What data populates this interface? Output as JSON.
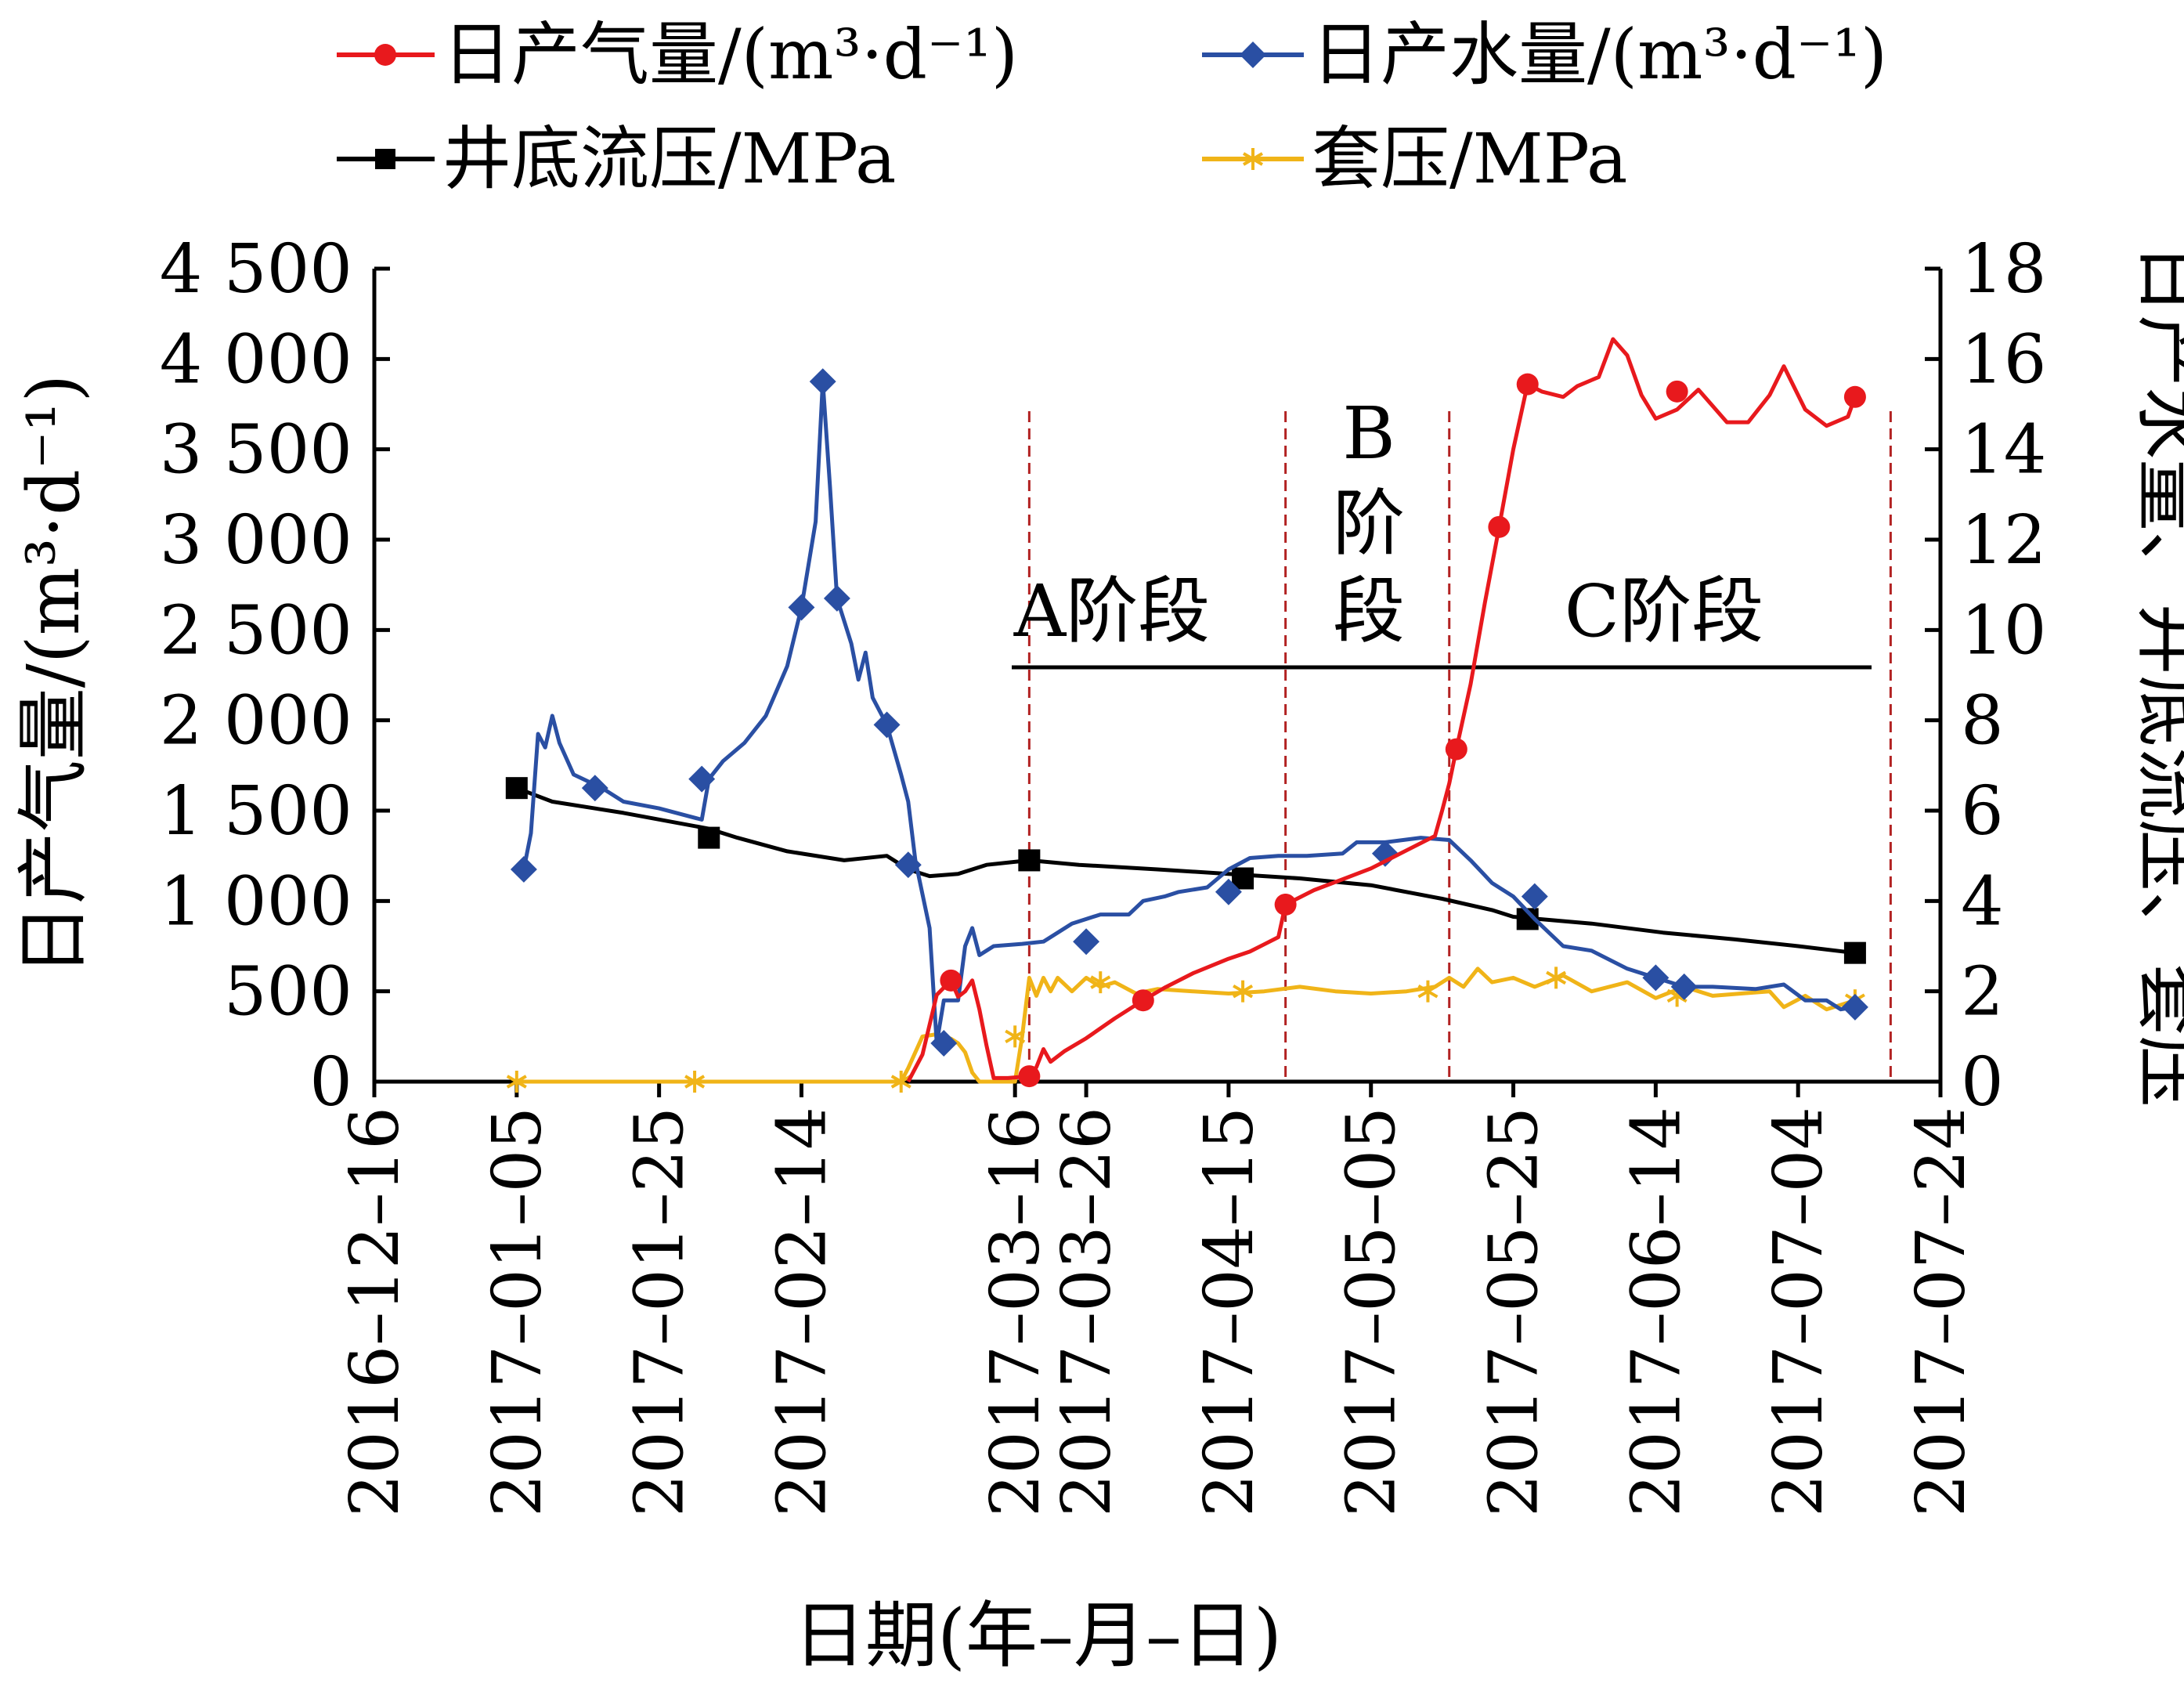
{
  "legend": {
    "gas": "日产气量/(m³·d⁻¹)",
    "water": "日产水量/(m³·d⁻¹)",
    "bhp": "井底流压/MPa",
    "casing": "套压/MPa"
  },
  "axes": {
    "xlabel": "日期(年–月–日)",
    "ylabel_left": "日产气量/(m³·d⁻¹)",
    "ylabel_right": "日产水量、井底流压、套压"
  },
  "stages": {
    "a": "A阶段",
    "b_letter": "B",
    "b_1": "阶",
    "b_2": "段",
    "c": "C阶段"
  },
  "chart_data": {
    "type": "line",
    "x_ticks": [
      "2016-12-16",
      "2017-01-05",
      "2017-01-25",
      "2017-02-14",
      "2017-03-16",
      "2017-03-26",
      "2017-04-15",
      "2017-05-05",
      "2017-05-25",
      "2017-06-14",
      "2017-07-04",
      "2017-07-24"
    ],
    "x_tick_labels": [
      "2016–12–16",
      "2017–01–05",
      "2017–01–25",
      "2017–02–14",
      "2017–03–16",
      "2017–03–26",
      "2017–04–15",
      "2017–05–05",
      "2017–05–25",
      "2017–06–14",
      "2017–07–04",
      "2017–07–24"
    ],
    "y_left": {
      "range": [
        0,
        4500
      ],
      "ticks": [
        0,
        500,
        1000,
        1500,
        2000,
        2500,
        3000,
        3500,
        4000,
        4500
      ],
      "tick_labels": [
        "0",
        "500",
        "1 000",
        "1 500",
        "2 000",
        "2 500",
        "3 000",
        "3 500",
        "4 000",
        "4 500"
      ]
    },
    "y_right": {
      "range": [
        0,
        18
      ],
      "ticks": [
        0,
        2,
        4,
        6,
        8,
        10,
        12,
        14,
        16,
        18
      ],
      "tick_labels": [
        "0",
        "2",
        "4",
        "6",
        "8",
        "10",
        "12",
        "14",
        "16",
        "18"
      ]
    },
    "stage_boundaries": [
      "2017-03-18",
      "2017-04-23",
      "2017-05-16",
      "2017-07-17"
    ],
    "colors": {
      "gas": "#e8191d",
      "water": "#2a4fa3",
      "bhp": "#000000",
      "casing": "#f0b418",
      "divider": "#b22222"
    },
    "series": [
      {
        "name": "日产气量/(m³·d⁻¹)",
        "key": "gas",
        "axis": "left",
        "marker": "circle",
        "points": [
          [
            "2017-03-01",
            0
          ],
          [
            "2017-03-03",
            150
          ],
          [
            "2017-03-05",
            480
          ],
          [
            "2017-03-07",
            560
          ],
          [
            "2017-03-08",
            470
          ],
          [
            "2017-03-09",
            500
          ],
          [
            "2017-03-10",
            560
          ],
          [
            "2017-03-11",
            400
          ],
          [
            "2017-03-12",
            200
          ],
          [
            "2017-03-13",
            20
          ],
          [
            "2017-03-15",
            20
          ],
          [
            "2017-03-18",
            30
          ],
          [
            "2017-03-19",
            80
          ],
          [
            "2017-03-20",
            180
          ],
          [
            "2017-03-21",
            110
          ],
          [
            "2017-03-23",
            170
          ],
          [
            "2017-03-26",
            240
          ],
          [
            "2017-03-30",
            350
          ],
          [
            "2017-04-03",
            450
          ],
          [
            "2017-04-06",
            520
          ],
          [
            "2017-04-10",
            600
          ],
          [
            "2017-04-15",
            680
          ],
          [
            "2017-04-18",
            720
          ],
          [
            "2017-04-20",
            760
          ],
          [
            "2017-04-22",
            800
          ],
          [
            "2017-04-23",
            980
          ],
          [
            "2017-04-27",
            1060
          ],
          [
            "2017-05-01",
            1120
          ],
          [
            "2017-05-05",
            1180
          ],
          [
            "2017-05-10",
            1280
          ],
          [
            "2017-05-14",
            1360
          ],
          [
            "2017-05-15",
            1500
          ],
          [
            "2017-05-16",
            1650
          ],
          [
            "2017-05-17",
            1840
          ],
          [
            "2017-05-19",
            2200
          ],
          [
            "2017-05-21",
            2650
          ],
          [
            "2017-05-23",
            3070
          ],
          [
            "2017-05-25",
            3500
          ],
          [
            "2017-05-27",
            3860
          ],
          [
            "2017-05-29",
            3820
          ],
          [
            "2017-06-01",
            3790
          ],
          [
            "2017-06-03",
            3850
          ],
          [
            "2017-06-06",
            3900
          ],
          [
            "2017-06-08",
            4110
          ],
          [
            "2017-06-10",
            4020
          ],
          [
            "2017-06-12",
            3800
          ],
          [
            "2017-06-14",
            3670
          ],
          [
            "2017-06-17",
            3720
          ],
          [
            "2017-06-20",
            3830
          ],
          [
            "2017-06-24",
            3650
          ],
          [
            "2017-06-27",
            3650
          ],
          [
            "2017-06-30",
            3800
          ],
          [
            "2017-07-02",
            3960
          ],
          [
            "2017-07-05",
            3720
          ],
          [
            "2017-07-08",
            3630
          ],
          [
            "2017-07-11",
            3680
          ],
          [
            "2017-07-12",
            3790
          ]
        ],
        "marker_points": [
          [
            "2017-03-07",
            560
          ],
          [
            "2017-03-18",
            30
          ],
          [
            "2017-04-03",
            450
          ],
          [
            "2017-04-23",
            980
          ],
          [
            "2017-05-17",
            1840
          ],
          [
            "2017-05-23",
            3070
          ],
          [
            "2017-05-27",
            3860
          ],
          [
            "2017-06-17",
            3820
          ],
          [
            "2017-07-12",
            3790
          ]
        ]
      },
      {
        "name": "日产水量/(m³·d⁻¹)",
        "key": "water",
        "axis": "right",
        "marker": "diamond",
        "points": [
          [
            "2017-01-06",
            4.7
          ],
          [
            "2017-01-07",
            5.5
          ],
          [
            "2017-01-08",
            7.7
          ],
          [
            "2017-01-09",
            7.4
          ],
          [
            "2017-01-10",
            8.1
          ],
          [
            "2017-01-11",
            7.5
          ],
          [
            "2017-01-13",
            6.8
          ],
          [
            "2017-01-17",
            6.5
          ],
          [
            "2017-01-20",
            6.2
          ],
          [
            "2017-01-25",
            6.05
          ],
          [
            "2017-01-31",
            5.8
          ],
          [
            "2017-02-01",
            6.7
          ],
          [
            "2017-02-03",
            7.1
          ],
          [
            "2017-02-06",
            7.5
          ],
          [
            "2017-02-09",
            8.1
          ],
          [
            "2017-02-12",
            9.2
          ],
          [
            "2017-02-14",
            10.5
          ],
          [
            "2017-02-16",
            12.4
          ],
          [
            "2017-02-17",
            15.5
          ],
          [
            "2017-02-18",
            13.2
          ],
          [
            "2017-02-19",
            10.7
          ],
          [
            "2017-02-20",
            10.2
          ],
          [
            "2017-02-21",
            9.7
          ],
          [
            "2017-02-22",
            8.9
          ],
          [
            "2017-02-23",
            9.5
          ],
          [
            "2017-02-24",
            8.5
          ],
          [
            "2017-02-26",
            7.9
          ],
          [
            "2017-02-28",
            6.8
          ],
          [
            "2017-03-01",
            6.2
          ],
          [
            "2017-03-02",
            4.9
          ],
          [
            "2017-03-04",
            3.4
          ],
          [
            "2017-03-05",
            0.85
          ],
          [
            "2017-03-06",
            1.8
          ],
          [
            "2017-03-08",
            1.8
          ],
          [
            "2017-03-09",
            3.0
          ],
          [
            "2017-03-10",
            3.4
          ],
          [
            "2017-03-11",
            2.8
          ],
          [
            "2017-03-13",
            3.0
          ],
          [
            "2017-03-17",
            3.05
          ],
          [
            "2017-03-20",
            3.1
          ],
          [
            "2017-03-24",
            3.5
          ],
          [
            "2017-03-28",
            3.7
          ],
          [
            "2017-04-01",
            3.7
          ],
          [
            "2017-04-03",
            4.0
          ],
          [
            "2017-04-06",
            4.1
          ],
          [
            "2017-04-08",
            4.2
          ],
          [
            "2017-04-12",
            4.3
          ],
          [
            "2017-04-15",
            4.7
          ],
          [
            "2017-04-18",
            4.95
          ],
          [
            "2017-04-22",
            5.0
          ],
          [
            "2017-04-26",
            5.0
          ],
          [
            "2017-05-01",
            5.05
          ],
          [
            "2017-05-03",
            5.3
          ],
          [
            "2017-05-07",
            5.3
          ],
          [
            "2017-05-12",
            5.4
          ],
          [
            "2017-05-16",
            5.35
          ],
          [
            "2017-05-19",
            4.9
          ],
          [
            "2017-05-22",
            4.4
          ],
          [
            "2017-05-25",
            4.1
          ],
          [
            "2017-05-28",
            3.6
          ],
          [
            "2017-06-01",
            3.0
          ],
          [
            "2017-06-05",
            2.9
          ],
          [
            "2017-06-10",
            2.5
          ],
          [
            "2017-06-14",
            2.3
          ],
          [
            "2017-06-18",
            2.1
          ],
          [
            "2017-06-22",
            2.1
          ],
          [
            "2017-06-28",
            2.05
          ],
          [
            "2017-07-02",
            2.15
          ],
          [
            "2017-07-05",
            1.8
          ],
          [
            "2017-07-08",
            1.8
          ],
          [
            "2017-07-10",
            1.6
          ],
          [
            "2017-07-12",
            1.65
          ]
        ],
        "marker_points": [
          [
            "2017-01-06",
            4.7
          ],
          [
            "2017-01-16",
            6.5
          ],
          [
            "2017-01-31",
            6.7
          ],
          [
            "2017-02-14",
            10.5
          ],
          [
            "2017-02-17",
            15.5
          ],
          [
            "2017-02-19",
            10.7
          ],
          [
            "2017-02-26",
            7.9
          ],
          [
            "2017-03-01",
            4.8
          ],
          [
            "2017-03-06",
            0.85
          ],
          [
            "2017-03-26",
            3.1
          ],
          [
            "2017-04-15",
            4.2
          ],
          [
            "2017-05-07",
            5.05
          ],
          [
            "2017-05-28",
            4.1
          ],
          [
            "2017-06-14",
            2.3
          ],
          [
            "2017-06-18",
            2.1
          ],
          [
            "2017-07-12",
            1.65
          ]
        ]
      },
      {
        "name": "井底流压/MPa",
        "key": "bhp",
        "axis": "right",
        "marker": "square",
        "points": [
          [
            "2017-01-05",
            6.5
          ],
          [
            "2017-01-10",
            6.2
          ],
          [
            "2017-01-20",
            5.95
          ],
          [
            "2017-02-01",
            5.6
          ],
          [
            "2017-02-05",
            5.4
          ],
          [
            "2017-02-12",
            5.1
          ],
          [
            "2017-02-20",
            4.9
          ],
          [
            "2017-02-26",
            5.0
          ],
          [
            "2017-03-01",
            4.7
          ],
          [
            "2017-03-04",
            4.55
          ],
          [
            "2017-03-08",
            4.6
          ],
          [
            "2017-03-12",
            4.8
          ],
          [
            "2017-03-18",
            4.9
          ],
          [
            "2017-03-25",
            4.8
          ],
          [
            "2017-04-05",
            4.7
          ],
          [
            "2017-04-15",
            4.6
          ],
          [
            "2017-04-25",
            4.5
          ],
          [
            "2017-05-05",
            4.35
          ],
          [
            "2017-05-15",
            4.05
          ],
          [
            "2017-05-22",
            3.8
          ],
          [
            "2017-05-25",
            3.65
          ],
          [
            "2017-06-05",
            3.5
          ],
          [
            "2017-06-15",
            3.3
          ],
          [
            "2017-06-25",
            3.15
          ],
          [
            "2017-07-04",
            3.0
          ],
          [
            "2017-07-12",
            2.85
          ]
        ],
        "marker_points": [
          [
            "2017-01-05",
            6.5
          ],
          [
            "2017-02-01",
            5.4
          ],
          [
            "2017-03-18",
            4.9
          ],
          [
            "2017-04-17",
            4.5
          ],
          [
            "2017-05-27",
            3.6
          ],
          [
            "2017-07-12",
            2.85
          ]
        ]
      },
      {
        "name": "套压/MPa",
        "key": "casing",
        "axis": "right",
        "marker": "asterisk",
        "points": [
          [
            "2017-01-05",
            0
          ],
          [
            "2017-02-28",
            0
          ],
          [
            "2017-03-01",
            0.3
          ],
          [
            "2017-03-03",
            1.0
          ],
          [
            "2017-03-05",
            1.05
          ],
          [
            "2017-03-07",
            0.95
          ],
          [
            "2017-03-08",
            0.85
          ],
          [
            "2017-03-09",
            0.65
          ],
          [
            "2017-03-10",
            0.2
          ],
          [
            "2017-03-11",
            0
          ],
          [
            "2017-03-16",
            0
          ],
          [
            "2017-03-17",
            1.0
          ],
          [
            "2017-03-18",
            2.3
          ],
          [
            "2017-03-19",
            1.9
          ],
          [
            "2017-03-20",
            2.3
          ],
          [
            "2017-03-21",
            2.0
          ],
          [
            "2017-03-22",
            2.3
          ],
          [
            "2017-03-24",
            2.0
          ],
          [
            "2017-03-26",
            2.3
          ],
          [
            "2017-03-28",
            2.1
          ],
          [
            "2017-03-30",
            2.2
          ],
          [
            "2017-04-02",
            1.95
          ],
          [
            "2017-04-05",
            2.05
          ],
          [
            "2017-04-10",
            2.0
          ],
          [
            "2017-04-15",
            1.95
          ],
          [
            "2017-04-20",
            2.0
          ],
          [
            "2017-04-25",
            2.1
          ],
          [
            "2017-04-30",
            2.0
          ],
          [
            "2017-05-05",
            1.95
          ],
          [
            "2017-05-10",
            2.0
          ],
          [
            "2017-05-14",
            2.1
          ],
          [
            "2017-05-16",
            2.3
          ],
          [
            "2017-05-18",
            2.1
          ],
          [
            "2017-05-20",
            2.5
          ],
          [
            "2017-05-22",
            2.2
          ],
          [
            "2017-05-25",
            2.3
          ],
          [
            "2017-05-28",
            2.1
          ],
          [
            "2017-06-01",
            2.35
          ],
          [
            "2017-06-05",
            2.0
          ],
          [
            "2017-06-10",
            2.2
          ],
          [
            "2017-06-14",
            1.85
          ],
          [
            "2017-06-18",
            2.1
          ],
          [
            "2017-06-22",
            1.9
          ],
          [
            "2017-06-26",
            1.95
          ],
          [
            "2017-06-30",
            2.0
          ],
          [
            "2017-07-02",
            1.65
          ],
          [
            "2017-07-05",
            1.9
          ],
          [
            "2017-07-08",
            1.6
          ],
          [
            "2017-07-12",
            1.8
          ]
        ],
        "marker_points": [
          [
            "2017-01-05",
            0
          ],
          [
            "2017-01-30",
            0
          ],
          [
            "2017-02-28",
            0
          ],
          [
            "2017-03-16",
            1.0
          ],
          [
            "2017-03-28",
            2.2
          ],
          [
            "2017-04-17",
            2.0
          ],
          [
            "2017-05-13",
            2.0
          ],
          [
            "2017-05-31",
            2.3
          ],
          [
            "2017-06-17",
            1.9
          ],
          [
            "2017-07-12",
            1.8
          ]
        ]
      }
    ]
  }
}
